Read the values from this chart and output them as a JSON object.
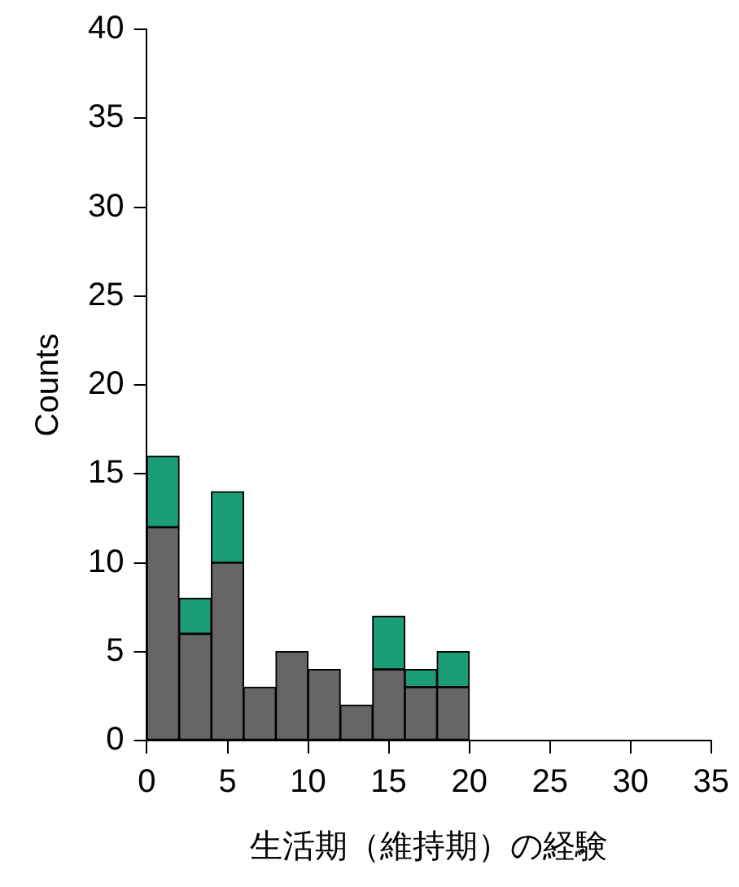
{
  "chart_data": {
    "type": "bar",
    "xlabel": "生活期（維持期）の経験",
    "ylabel": "Counts",
    "x": [
      1,
      3,
      5,
      7,
      9,
      11,
      13,
      15,
      17,
      19
    ],
    "series": [
      {
        "color": "#666666",
        "values": [
          12,
          6,
          10,
          3,
          5,
          4,
          2,
          4,
          3,
          3
        ]
      },
      {
        "color": "#1b9e77",
        "values": [
          4,
          2,
          4,
          0,
          0,
          0,
          0,
          3,
          1,
          2
        ]
      }
    ],
    "stacked": true,
    "xlim": [
      0,
      35
    ],
    "xticks": [
      0,
      5,
      10,
      15,
      20,
      25,
      30,
      35
    ],
    "ylim": [
      0,
      40
    ],
    "yticks": [
      0,
      5,
      10,
      15,
      20,
      25,
      30,
      35,
      40
    ],
    "grid": false,
    "legend": false
  }
}
